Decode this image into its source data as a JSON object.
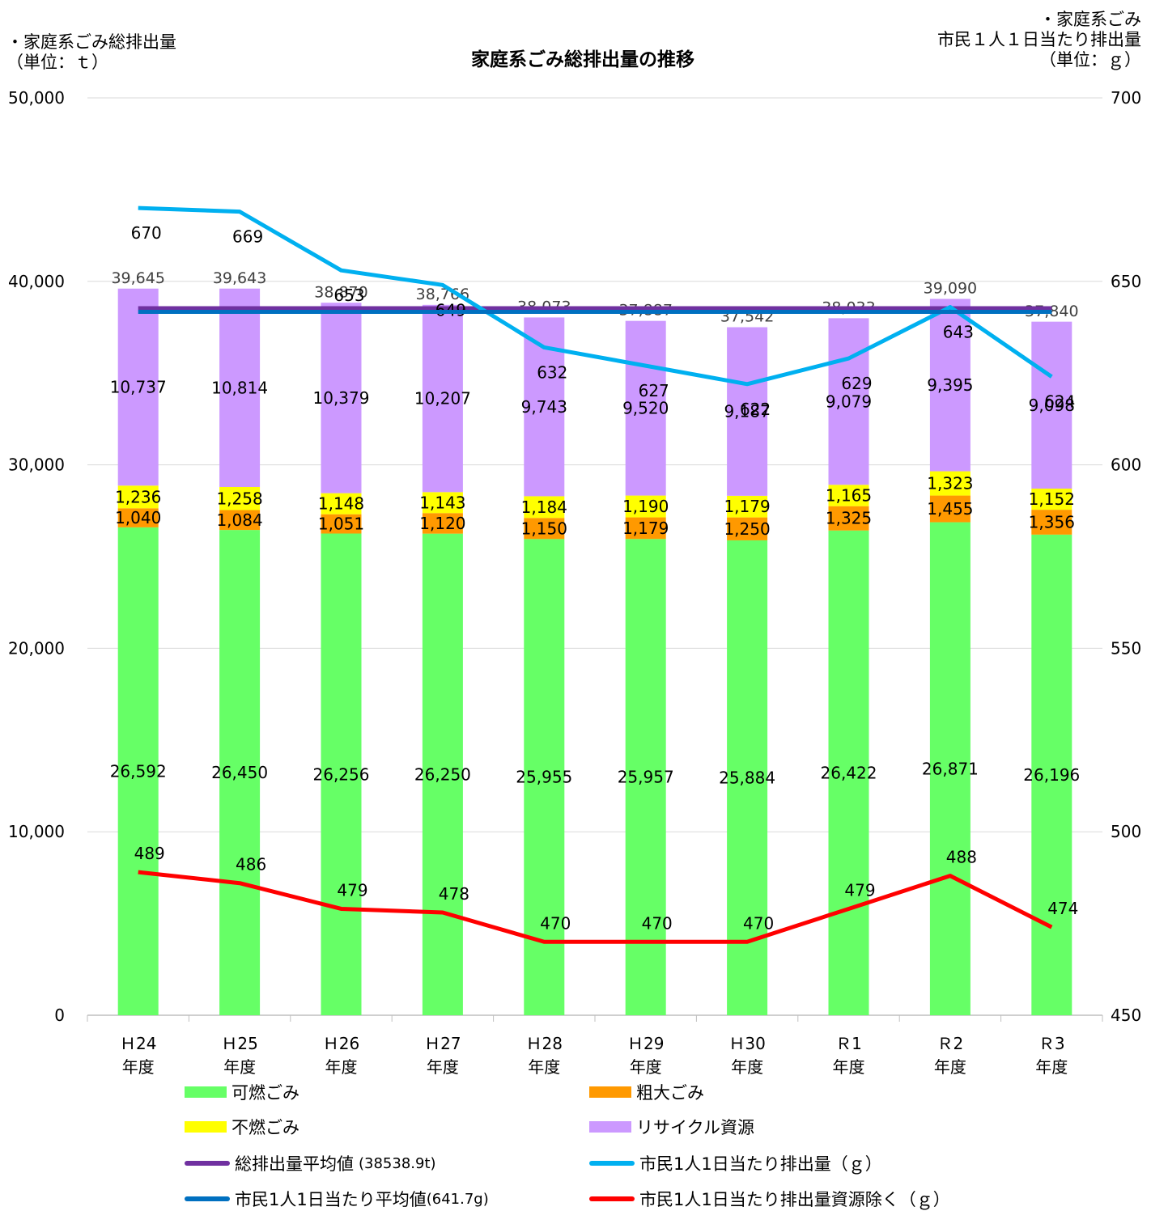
{
  "title": "家庭系ごみ総排出量の推移",
  "left_axis_label": "・家庭系ごみ総排出量\n（単位：ｔ）",
  "right_axis_label": "・家庭系ごみ\n市民１人１日当たり排出量\n（単位：ｇ）",
  "colors": {
    "combustible": "#66ff66",
    "bulky": "#ff9900",
    "incombustible": "#ffff00",
    "recycle": "#cc99ff",
    "avg_total": "#7030a0",
    "per_capita": "#00b0f0",
    "per_capita_avg": "#0070c0",
    "per_capita_ex": "#ff0000"
  },
  "chart_data": {
    "type": "bar",
    "stacked": true,
    "categories": [
      "Ｈ24\n年度",
      "Ｈ25\n年度",
      "Ｈ26\n年度",
      "Ｈ27\n年度",
      "Ｈ28\n年度",
      "Ｈ29\n年度",
      "Ｈ30\n年度",
      "Ｒ1\n年度",
      "Ｒ2\n年度",
      "Ｒ3\n年度"
    ],
    "y_left": {
      "min": 0,
      "max": 50000,
      "ticks": [
        0,
        10000,
        20000,
        30000,
        40000,
        50000
      ],
      "tick_labels": [
        "0",
        "10,000",
        "20,000",
        "30,000",
        "40,000",
        "50,000"
      ]
    },
    "y_right": {
      "min": 450,
      "max": 700,
      "ticks": [
        450,
        500,
        550,
        600,
        650,
        700
      ],
      "tick_labels": [
        "450",
        "500",
        "550",
        "600",
        "650",
        "700"
      ]
    },
    "grid": true,
    "legend_position": "bottom",
    "series": [
      {
        "name": "可燃ごみ",
        "key": "combustible",
        "type": "bar",
        "axis": "left",
        "values": [
          26592,
          26450,
          26256,
          26250,
          25955,
          25957,
          25884,
          26422,
          26871,
          26196
        ],
        "labels": [
          "26,592",
          "26,450",
          "26,256",
          "26,250",
          "25,955",
          "25,957",
          "25,884",
          "26,422",
          "26,871",
          "26,196"
        ]
      },
      {
        "name": "粗大ごみ",
        "key": "bulky",
        "type": "bar",
        "axis": "left",
        "values": [
          1040,
          1084,
          1051,
          1120,
          1150,
          1179,
          1250,
          1325,
          1455,
          1356
        ],
        "labels": [
          "1,040",
          "1,084",
          "1,051",
          "1,120",
          "1,150",
          "1,179",
          "1,250",
          "1,325",
          "1,455",
          "1,356"
        ]
      },
      {
        "name": "不燃ごみ",
        "key": "incombustible",
        "type": "bar",
        "axis": "left",
        "values": [
          1236,
          1258,
          1148,
          1143,
          1184,
          1190,
          1179,
          1165,
          1323,
          1152
        ],
        "labels": [
          "1,236",
          "1,258",
          "1,148",
          "1,143",
          "1,184",
          "1,190",
          "1,179",
          "1,165",
          "1,323",
          "1,152"
        ]
      },
      {
        "name": "リサイクル資源",
        "key": "recycle",
        "type": "bar",
        "axis": "left",
        "values": [
          10737,
          10814,
          10379,
          10207,
          9743,
          9520,
          9187,
          9079,
          9395,
          9098
        ],
        "labels": [
          "10,737",
          "10,814",
          "10,379",
          "10,207",
          "9,743",
          "9,520",
          "9,187",
          "9,079",
          "9,395",
          "9,098"
        ]
      }
    ],
    "totals": {
      "values": [
        39645,
        39643,
        38870,
        38766,
        38073,
        37887,
        37542,
        38033,
        39090,
        37840
      ],
      "labels": [
        "39,645",
        "39,643",
        "38,870",
        "38,766",
        "38,073",
        "37,887",
        "37,542",
        "38,033",
        "39,090",
        "37,840"
      ]
    },
    "lines": [
      {
        "name": "総排出量平均値",
        "suffix": "（38538.9t）",
        "key": "avg_total",
        "axis": "left",
        "constant": 38538.9
      },
      {
        "name": "市民1人1日当たり排出量",
        "suffix": "（ｇ）",
        "key": "per_capita",
        "axis": "right",
        "values": [
          670,
          669,
          653,
          649,
          632,
          627,
          622,
          629,
          643,
          624
        ],
        "labels": [
          "670",
          "669",
          "653",
          "649",
          "632",
          "627",
          "622",
          "629",
          "643",
          "624"
        ]
      },
      {
        "name": "市民1人1日当たり平均値",
        "suffix": "(641.7g)",
        "key": "per_capita_avg",
        "axis": "right",
        "constant": 641.7
      },
      {
        "name": "市民1人1日当たり排出量資源除く",
        "suffix": "（ｇ）",
        "key": "per_capita_ex",
        "axis": "right",
        "values": [
          489,
          486,
          479,
          478,
          470,
          470,
          470,
          479,
          488,
          474
        ],
        "labels": [
          "489",
          "486",
          "479",
          "478",
          "470",
          "470",
          "470",
          "479",
          "488",
          "474"
        ]
      }
    ]
  },
  "legend": {
    "combustible": "可燃ごみ",
    "bulky": "粗大ごみ",
    "incombustible": "不燃ごみ",
    "recycle": "リサイクル資源",
    "avg_total": "総排出量平均値",
    "avg_total_suffix": "(38538.9t)",
    "per_capita": "市民1人1日当たり排出量（ｇ）",
    "per_capita_avg": "市民1人1日当たり平均値",
    "per_capita_avg_suffix": "(641.7g)",
    "per_capita_ex": "市民1人1日当たり排出量資源除く（ｇ）"
  }
}
